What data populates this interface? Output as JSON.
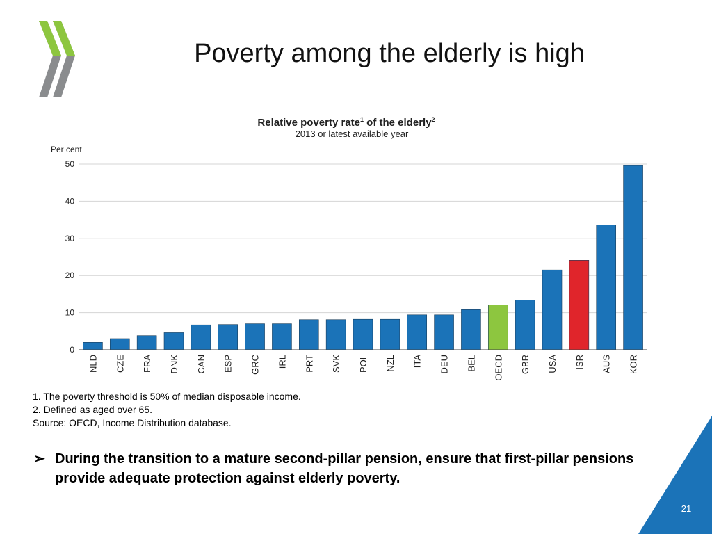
{
  "slide": {
    "title": "Poverty among the elderly is high",
    "page_number": "21",
    "colors": {
      "accent_blue": "#1b73b8",
      "logo_green": "#8dc63f",
      "logo_gray": "#8a8c8e"
    }
  },
  "notes": {
    "note1": "1. The poverty threshold is 50% of median disposable income.",
    "note2": "2. Defined as aged over 65.",
    "source": "Source: OECD, Income Distribution database."
  },
  "bullet": {
    "marker": "➢",
    "text": "During the transition to a mature second-pillar pension, ensure that first-pillar pensions provide adequate protection against elderly poverty."
  },
  "chart_data": {
    "type": "bar",
    "title": "Relative poverty rate",
    "title_superscript": "1",
    "title_suffix": " of the elderly",
    "title_suffix_superscript": "2",
    "subtitle": "2013 or latest available year",
    "ylabel": "Per cent",
    "xlabel": "",
    "ylim": [
      0,
      50
    ],
    "yticks": [
      0,
      10,
      20,
      30,
      40,
      50
    ],
    "grid": true,
    "categories": [
      "NLD",
      "CZE",
      "FRA",
      "DNK",
      "CAN",
      "ESP",
      "GRC",
      "IRL",
      "PRT",
      "SVK",
      "POL",
      "NZL",
      "ITA",
      "DEU",
      "BEL",
      "OECD",
      "GBR",
      "USA",
      "ISR",
      "AUS",
      "KOR"
    ],
    "values": [
      2.0,
      3.0,
      3.8,
      4.6,
      6.7,
      6.8,
      7.0,
      7.0,
      8.1,
      8.1,
      8.2,
      8.2,
      9.4,
      9.4,
      10.8,
      12.1,
      13.4,
      21.5,
      24.1,
      33.6,
      49.6
    ],
    "colors": [
      "#1b73b8",
      "#1b73b8",
      "#1b73b8",
      "#1b73b8",
      "#1b73b8",
      "#1b73b8",
      "#1b73b8",
      "#1b73b8",
      "#1b73b8",
      "#1b73b8",
      "#1b73b8",
      "#1b73b8",
      "#1b73b8",
      "#1b73b8",
      "#1b73b8",
      "#8dc63f",
      "#1b73b8",
      "#1b73b8",
      "#e0252b",
      "#1b73b8",
      "#1b73b8"
    ]
  }
}
